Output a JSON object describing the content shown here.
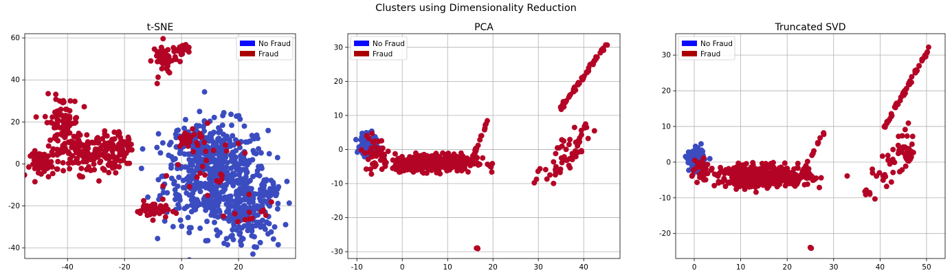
{
  "figure": {
    "suptitle": "Clusters using Dimensionality Reduction"
  },
  "colors": {
    "no_fraud_legend": "#0a0aff",
    "fraud_legend": "#aa0000",
    "no_fraud_points": "#3b4cc0",
    "fraud_points": "#b40426",
    "grid": "#b0b0b0"
  },
  "chart_data": [
    {
      "type": "scatter",
      "title": "t-SNE",
      "xlabel": "",
      "ylabel": "",
      "xlim": [
        -55,
        40
      ],
      "ylim": [
        -45,
        62
      ],
      "xticks": [
        -40,
        -20,
        0,
        20
      ],
      "yticks": [
        -40,
        -20,
        0,
        20,
        40,
        60
      ],
      "grid": true,
      "legend": {
        "placement": "top-right",
        "entries": [
          "No Fraud",
          "Fraud"
        ]
      },
      "series": [
        {
          "name": "No Fraud",
          "clusters": [
            {
              "cx": 12,
              "cy": -5,
              "sx": 9,
              "sy": 12,
              "n": 520
            },
            {
              "cx": 22,
              "cy": -25,
              "sx": 5,
              "sy": 8,
              "n": 140
            },
            {
              "cx": 30,
              "cy": -15,
              "sx": 2.5,
              "sy": 4,
              "n": 40
            },
            {
              "cx": 5,
              "cy": 10,
              "sx": 5,
              "sy": 4,
              "n": 80
            }
          ]
        },
        {
          "name": "Fraud",
          "clusters": [
            {
              "cx": -32,
              "cy": 5,
              "sx": 6,
              "sy": 5,
              "n": 170
            },
            {
              "cx": -42,
              "cy": 20,
              "sx": 3,
              "sy": 6,
              "n": 80
            },
            {
              "cx": -48,
              "cy": 0,
              "sx": 2.5,
              "sy": 3,
              "n": 60
            },
            {
              "cx": -21,
              "cy": 8,
              "sx": 2,
              "sy": 3,
              "n": 30
            },
            {
              "cx": -6,
              "cy": 50,
              "sx": 2,
              "sy": 4,
              "n": 45
            },
            {
              "cx": 0,
              "cy": 55,
              "sx": 1.3,
              "sy": 1.2,
              "n": 25
            },
            {
              "cx": -10,
              "cy": -22,
              "sx": 3,
              "sy": 2,
              "n": 40
            },
            {
              "cx": 3,
              "cy": 12,
              "sx": 3,
              "sy": 2.5,
              "n": 25
            },
            {
              "cx": 12,
              "cy": -5,
              "sx": 7,
              "sy": 9,
              "n": 25
            },
            {
              "cx": 25,
              "cy": -25,
              "sx": 4,
              "sy": 3,
              "n": 10
            }
          ]
        }
      ]
    },
    {
      "type": "scatter",
      "title": "PCA",
      "xlabel": "",
      "ylabel": "",
      "xlim": [
        -12,
        48
      ],
      "ylim": [
        -32,
        34
      ],
      "xticks": [
        -10,
        0,
        10,
        20,
        30,
        40
      ],
      "yticks": [
        -30,
        -20,
        -10,
        0,
        10,
        20,
        30
      ],
      "grid": true,
      "legend": {
        "placement": "top-left",
        "entries": [
          "No Fraud",
          "Fraud"
        ]
      },
      "series": [
        {
          "name": "No Fraud",
          "clusters": [
            {
              "cx": -7.5,
              "cy": 1,
              "sx": 0.9,
              "sy": 1.5,
              "n": 180
            }
          ]
        },
        {
          "name": "Fraud",
          "clusters": [
            {
              "cx": 7,
              "cy": -3.8,
              "sx": 4.5,
              "sy": 1.3,
              "n": 400
            },
            {
              "cx": -6,
              "cy": -1,
              "sx": 1.3,
              "sy": 2.3,
              "n": 40
            },
            {
              "cx": 16.5,
              "cy": -29,
              "sx": 0.1,
              "sy": 0.1,
              "n": 3
            }
          ],
          "lines": [
            {
              "x0": 15,
              "y0": -4,
              "x1": 19,
              "y1": 9,
              "n": 16,
              "jitter": 0.3
            },
            {
              "x0": 35,
              "y0": 12,
              "x1": 45,
              "y1": 31,
              "n": 50,
              "jitter": 0.3
            },
            {
              "x0": 29,
              "y0": -10,
              "x1": 41,
              "y1": 6,
              "n": 40,
              "jitter": 2
            },
            {
              "x0": 33,
              "y0": -8,
              "x1": 40,
              "y1": 2,
              "n": 20,
              "jitter": 1.5
            }
          ]
        }
      ]
    },
    {
      "type": "scatter",
      "title": "Truncated SVD",
      "xlabel": "",
      "ylabel": "",
      "xlim": [
        -4,
        54
      ],
      "ylim": [
        -27,
        36
      ],
      "xticks": [
        0,
        10,
        20,
        30,
        40,
        50
      ],
      "yticks": [
        -20,
        -10,
        0,
        10,
        20,
        30
      ],
      "grid": true,
      "legend": {
        "placement": "top-left",
        "entries": [
          "No Fraud",
          "Fraud"
        ]
      },
      "series": [
        {
          "name": "No Fraud",
          "clusters": [
            {
              "cx": 0.5,
              "cy": 0.5,
              "sx": 0.8,
              "sy": 1.4,
              "n": 180
            }
          ]
        },
        {
          "name": "Fraud",
          "clusters": [
            {
              "cx": 15,
              "cy": -4,
              "sx": 5,
              "sy": 1.5,
              "n": 420
            },
            {
              "cx": 2,
              "cy": -2,
              "sx": 0.8,
              "sy": 2,
              "n": 30
            },
            {
              "cx": 25,
              "cy": -24,
              "sx": 0.1,
              "sy": 0.1,
              "n": 3
            }
          ],
          "lines": [
            {
              "x0": 22,
              "y0": -6,
              "x1": 28,
              "y1": 9,
              "n": 18,
              "jitter": 0.3
            },
            {
              "x0": 41,
              "y0": 10,
              "x1": 51,
              "y1": 33,
              "n": 50,
              "jitter": 0.3
            },
            {
              "x0": 37,
              "y0": -10,
              "x1": 47,
              "y1": 8,
              "n": 40,
              "jitter": 2
            },
            {
              "x0": 41,
              "y0": -6,
              "x1": 48,
              "y1": 4,
              "n": 20,
              "jitter": 1.5
            }
          ]
        }
      ]
    }
  ]
}
